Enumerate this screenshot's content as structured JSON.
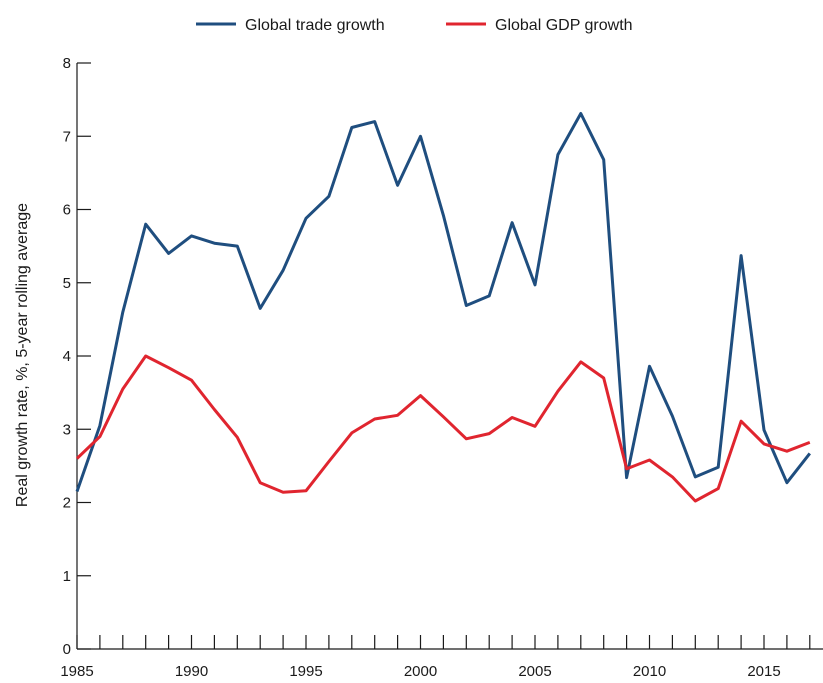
{
  "chart_data": {
    "type": "line",
    "title": "",
    "xlabel": "",
    "ylabel": "Real growth rate, %, 5-year rolling average",
    "xlim": [
      1985,
      2017
    ],
    "ylim": [
      0,
      8
    ],
    "x_ticks": [
      1985,
      1990,
      1995,
      2000,
      2005,
      2010,
      2015
    ],
    "y_ticks": [
      0,
      1,
      2,
      3,
      4,
      5,
      6,
      7,
      8
    ],
    "grid": false,
    "legend_position": "top-center",
    "x": [
      1985,
      1986,
      1987,
      1988,
      1989,
      1990,
      1991,
      1992,
      1993,
      1994,
      1995,
      1996,
      1997,
      1998,
      1999,
      2000,
      2001,
      2002,
      2003,
      2004,
      2005,
      2006,
      2007,
      2008,
      2009,
      2010,
      2011,
      2012,
      2013,
      2014,
      2015,
      2016,
      2017
    ],
    "series": [
      {
        "name": "Global trade growth",
        "color": "#1f4e7f",
        "values": [
          2.15,
          3.05,
          4.6,
          5.8,
          5.4,
          5.64,
          5.54,
          5.5,
          4.65,
          5.17,
          5.88,
          6.18,
          7.12,
          7.2,
          6.33,
          7.0,
          5.92,
          4.69,
          4.82,
          5.82,
          4.97,
          6.75,
          7.31,
          6.68,
          2.34,
          3.86,
          3.18,
          2.35,
          2.48,
          5.37,
          2.99,
          2.27,
          2.67
        ]
      },
      {
        "name": "Global GDP growth",
        "color": "#e0252f",
        "values": [
          2.6,
          2.9,
          3.55,
          4.0,
          3.84,
          3.67,
          3.27,
          2.89,
          2.27,
          2.14,
          2.16,
          2.56,
          2.95,
          3.14,
          3.19,
          3.46,
          3.17,
          2.87,
          2.94,
          3.16,
          3.04,
          3.52,
          3.92,
          3.7,
          2.46,
          2.58,
          2.35,
          2.02,
          2.19,
          3.11,
          2.8,
          2.7,
          2.82
        ]
      }
    ]
  }
}
